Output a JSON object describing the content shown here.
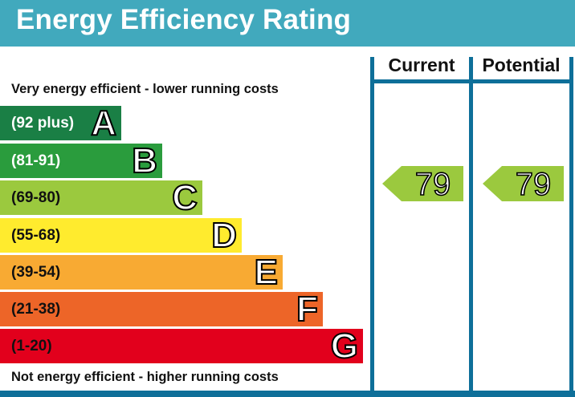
{
  "title": "Energy Efficiency Rating",
  "top_caption": "Very energy efficient - lower running costs",
  "bottom_caption": "Not energy efficient - higher running costs",
  "columns": {
    "current": "Current",
    "potential": "Potential"
  },
  "bands": [
    {
      "range": "(92 plus)",
      "letter": "A",
      "color": "#1a7f45",
      "text_color": "#ffffff"
    },
    {
      "range": "(81-91)",
      "letter": "B",
      "color": "#2a9c3d",
      "text_color": "#ffffff"
    },
    {
      "range": "(69-80)",
      "letter": "C",
      "color": "#9bc93e",
      "text_color": "#111111"
    },
    {
      "range": "(55-68)",
      "letter": "D",
      "color": "#ffeb2e",
      "text_color": "#111111"
    },
    {
      "range": "(39-54)",
      "letter": "E",
      "color": "#f8aa33",
      "text_color": "#111111"
    },
    {
      "range": "(21-38)",
      "letter": "F",
      "color": "#ed6528",
      "text_color": "#111111"
    },
    {
      "range": "(1-20)",
      "letter": "G",
      "color": "#e2001c",
      "text_color": "#111111"
    }
  ],
  "ratings": {
    "current": {
      "value": "79",
      "band": "C",
      "color": "#9bc93e"
    },
    "potential": {
      "value": "79",
      "band": "C",
      "color": "#9bc93e"
    }
  },
  "colors": {
    "header": "#41a9bd",
    "frame": "#0e6f99"
  }
}
